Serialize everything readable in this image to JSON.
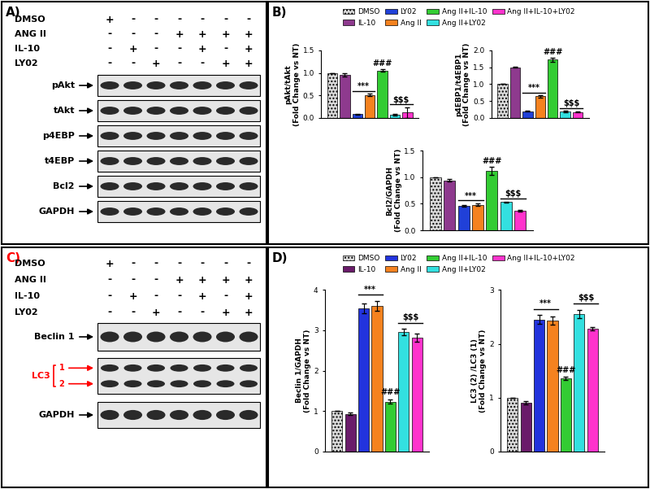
{
  "panels": {
    "A": {
      "label": "A)",
      "color": "black",
      "treatments": [
        {
          "name": "DMSO",
          "signs": [
            "+",
            "-",
            "-",
            "-",
            "-",
            "-",
            "-"
          ]
        },
        {
          "name": "ANG II",
          "signs": [
            "-",
            "-",
            "-",
            "+",
            "+",
            "+",
            "+"
          ]
        },
        {
          "name": "IL-10",
          "signs": [
            "-",
            "+",
            "-",
            "-",
            "+",
            "-",
            "+"
          ]
        },
        {
          "name": "LY02",
          "signs": [
            "-",
            "-",
            "+",
            "-",
            "-",
            "+",
            "+"
          ]
        }
      ],
      "blots": [
        {
          "label": "pAkt"
        },
        {
          "label": "tAkt"
        },
        {
          "label": "p4EBP"
        },
        {
          "label": "t4EBP"
        },
        {
          "label": "Bcl2"
        },
        {
          "label": "GAPDH"
        }
      ]
    },
    "B": {
      "label": "B)",
      "color": "black"
    },
    "C": {
      "label": "C)",
      "color": "red",
      "treatments": [
        {
          "name": "DMSO",
          "signs": [
            "+",
            "-",
            "-",
            "-",
            "-",
            "-",
            "-"
          ]
        },
        {
          "name": "ANG II",
          "signs": [
            "-",
            "-",
            "-",
            "+",
            "+",
            "+",
            "+"
          ]
        },
        {
          "name": "IL-10",
          "signs": [
            "-",
            "+",
            "-",
            "-",
            "+",
            "-",
            "+"
          ]
        },
        {
          "name": "LY02",
          "signs": [
            "-",
            "-",
            "+",
            "-",
            "-",
            "+",
            "+"
          ]
        }
      ],
      "blots": [
        {
          "label": "Beclin 1"
        },
        {
          "label": "LC3",
          "bands": [
            "1",
            "2"
          ],
          "color": "red"
        },
        {
          "label": "GAPDH"
        }
      ]
    },
    "D": {
      "label": "D)",
      "color": "black"
    }
  },
  "chart_data": [
    {
      "type": "bar",
      "y_label": "pAkt/tAkt\n(Fold Change vs NT)",
      "categories": [
        null
      ],
      "tick_labels": "y",
      "legend": "upper center",
      "ylim": [
        0.0,
        1.5
      ],
      "yticks": [
        0.0,
        0.5,
        1.0,
        1.5
      ],
      "series": [
        {
          "name": "DMSO",
          "color": "#d9d9d9",
          "values": [
            1.0
          ],
          "errors": [
            0.0
          ]
        },
        {
          "name": "IL-10",
          "color": "#8e3a8e",
          "values": [
            0.96
          ],
          "errors": [
            0.04
          ]
        },
        {
          "name": "LY02",
          "color": "#2040d8",
          "values": [
            0.08
          ],
          "errors": [
            0.01
          ]
        },
        {
          "name": "Ang II",
          "color": "#f5821f",
          "values": [
            0.51
          ],
          "errors": [
            0.03
          ]
        },
        {
          "name": "Ang II+IL-10",
          "color": "#33cc33",
          "values": [
            1.05
          ],
          "errors": [
            0.03
          ]
        },
        {
          "name": "Ang II+LY02",
          "color": "#33e0e0",
          "values": [
            0.07
          ],
          "errors": [
            0.01
          ]
        },
        {
          "name": "Ang II+IL-10+LY02",
          "color": "#ff33cc",
          "values": [
            0.12
          ],
          "errors": [
            0.12
          ]
        }
      ],
      "annotations": [
        {
          "text": "***",
          "span": [
            "LY02",
            "Ang II"
          ]
        },
        {
          "text": "###",
          "span": [
            "Ang II+IL-10"
          ]
        },
        {
          "text": "$$$",
          "span": [
            "Ang II+LY02",
            "Ang II+IL-10+LY02"
          ]
        }
      ]
    },
    {
      "type": "bar",
      "y_label": "p4EBP1/t4EBP1\n(Fold Change vs NT)",
      "categories": [
        null
      ],
      "tick_labels": "y",
      "ylim": [
        0.0,
        2.0
      ],
      "yticks": [
        0.0,
        0.5,
        1.0,
        1.5,
        2.0
      ],
      "series": [
        {
          "name": "DMSO",
          "color": "#d9d9d9",
          "values": [
            1.0
          ],
          "errors": [
            0.0
          ]
        },
        {
          "name": "IL-10",
          "color": "#8e3a8e",
          "values": [
            1.5
          ],
          "errors": [
            0.02
          ]
        },
        {
          "name": "LY02",
          "color": "#2040d8",
          "values": [
            0.2
          ],
          "errors": [
            0.02
          ]
        },
        {
          "name": "Ang II",
          "color": "#f5821f",
          "values": [
            0.64
          ],
          "errors": [
            0.03
          ]
        },
        {
          "name": "Ang II+IL-10",
          "color": "#33cc33",
          "values": [
            1.73
          ],
          "errors": [
            0.06
          ]
        },
        {
          "name": "Ang II+LY02",
          "color": "#33e0e0",
          "values": [
            0.19
          ],
          "errors": [
            0.02
          ]
        },
        {
          "name": "Ang II+IL-10+LY02",
          "color": "#ff33cc",
          "values": [
            0.17
          ],
          "errors": [
            0.01
          ]
        }
      ],
      "annotations": [
        {
          "text": "***",
          "span": [
            "LY02",
            "Ang II"
          ]
        },
        {
          "text": "###",
          "span": [
            "Ang II+IL-10"
          ]
        },
        {
          "text": "$$$",
          "span": [
            "Ang II+LY02",
            "Ang II+IL-10+LY02"
          ]
        }
      ]
    },
    {
      "type": "bar",
      "y_label": "Bcl2/GAPDH\n(Fold Change vs NT)",
      "categories": [
        null
      ],
      "tick_labels": "y",
      "ylim": [
        0.0,
        1.5
      ],
      "yticks": [
        0.0,
        0.5,
        1.0,
        1.5
      ],
      "series": [
        {
          "name": "DMSO",
          "color": "#d9d9d9",
          "values": [
            1.0
          ],
          "errors": [
            0.0
          ]
        },
        {
          "name": "IL-10",
          "color": "#8e3a8e",
          "values": [
            0.94
          ],
          "errors": [
            0.02
          ]
        },
        {
          "name": "LY02",
          "color": "#2040d8",
          "values": [
            0.46
          ],
          "errors": [
            0.02
          ]
        },
        {
          "name": "Ang II",
          "color": "#f5821f",
          "values": [
            0.48
          ],
          "errors": [
            0.02
          ]
        },
        {
          "name": "Ang II+IL-10",
          "color": "#33cc33",
          "values": [
            1.12
          ],
          "errors": [
            0.08
          ]
        },
        {
          "name": "Ang II+LY02",
          "color": "#33e0e0",
          "values": [
            0.53
          ],
          "errors": [
            0.01
          ]
        },
        {
          "name": "Ang II+IL-10+LY02",
          "color": "#ff33cc",
          "values": [
            0.37
          ],
          "errors": [
            0.02
          ]
        }
      ],
      "annotations": [
        {
          "text": "***",
          "span": [
            "LY02",
            "Ang II"
          ]
        },
        {
          "text": "###",
          "span": [
            "Ang II+IL-10"
          ]
        },
        {
          "text": "$$$",
          "span": [
            "Ang II+LY02",
            "Ang II+IL-10+LY02"
          ]
        }
      ]
    },
    {
      "type": "bar",
      "y_label": "Beclin 1/GAPDH\n(Fold Change vs NT)",
      "categories": [
        null
      ],
      "tick_labels": "y",
      "legend": "upper center",
      "ylim": [
        0,
        4
      ],
      "yticks": [
        0,
        1,
        2,
        3,
        4
      ],
      "series": [
        {
          "name": "DMSO",
          "color": "#d9d9d9",
          "values": [
            1.0
          ],
          "errors": [
            0.0
          ]
        },
        {
          "name": "IL-10",
          "color": "#6a1b6a",
          "values": [
            0.93
          ],
          "errors": [
            0.03
          ]
        },
        {
          "name": "LY02",
          "color": "#2233dd",
          "values": [
            3.55
          ],
          "errors": [
            0.12
          ]
        },
        {
          "name": "Ang II",
          "color": "#f5821f",
          "values": [
            3.6
          ],
          "errors": [
            0.12
          ]
        },
        {
          "name": "Ang II+IL-10",
          "color": "#33cc33",
          "values": [
            1.23
          ],
          "errors": [
            0.05
          ]
        },
        {
          "name": "Ang II+LY02",
          "color": "#33e0e0",
          "values": [
            2.95
          ],
          "errors": [
            0.08
          ]
        },
        {
          "name": "Ang II+IL-10+LY02",
          "color": "#ff33cc",
          "values": [
            2.82
          ],
          "errors": [
            0.1
          ]
        }
      ],
      "annotations": [
        {
          "text": "***",
          "span": [
            "LY02",
            "Ang II"
          ]
        },
        {
          "text": "###",
          "span": [
            "Ang II+IL-10"
          ]
        },
        {
          "text": "$$$",
          "span": [
            "Ang II+LY02",
            "Ang II+IL-10+LY02"
          ]
        }
      ]
    },
    {
      "type": "bar",
      "y_label": "LC3 (2) /LC3 (1)\n(Fold Change vs NT)",
      "categories": [
        null
      ],
      "tick_labels": "y",
      "ylim": [
        0,
        3
      ],
      "yticks": [
        0,
        1,
        2,
        3
      ],
      "series": [
        {
          "name": "DMSO",
          "color": "#d9d9d9",
          "values": [
            1.0
          ],
          "errors": [
            0.0
          ]
        },
        {
          "name": "IL-10",
          "color": "#6a1b6a",
          "values": [
            0.9
          ],
          "errors": [
            0.03
          ]
        },
        {
          "name": "LY02",
          "color": "#2233dd",
          "values": [
            2.45
          ],
          "errors": [
            0.08
          ]
        },
        {
          "name": "Ang II",
          "color": "#f5821f",
          "values": [
            2.43
          ],
          "errors": [
            0.07
          ]
        },
        {
          "name": "Ang II+IL-10",
          "color": "#33cc33",
          "values": [
            1.35
          ],
          "errors": [
            0.03
          ]
        },
        {
          "name": "Ang II+LY02",
          "color": "#33e0e0",
          "values": [
            2.55
          ],
          "errors": [
            0.08
          ]
        },
        {
          "name": "Ang II+IL-10+LY02",
          "color": "#ff33cc",
          "values": [
            2.28
          ],
          "errors": [
            0.03
          ]
        }
      ],
      "annotations": [
        {
          "text": "***",
          "span": [
            "LY02",
            "Ang II"
          ]
        },
        {
          "text": "###",
          "span": [
            "Ang II+IL-10"
          ]
        },
        {
          "text": "$$$",
          "span": [
            "Ang II+LY02",
            "Ang II+IL-10+LY02"
          ]
        }
      ]
    }
  ]
}
